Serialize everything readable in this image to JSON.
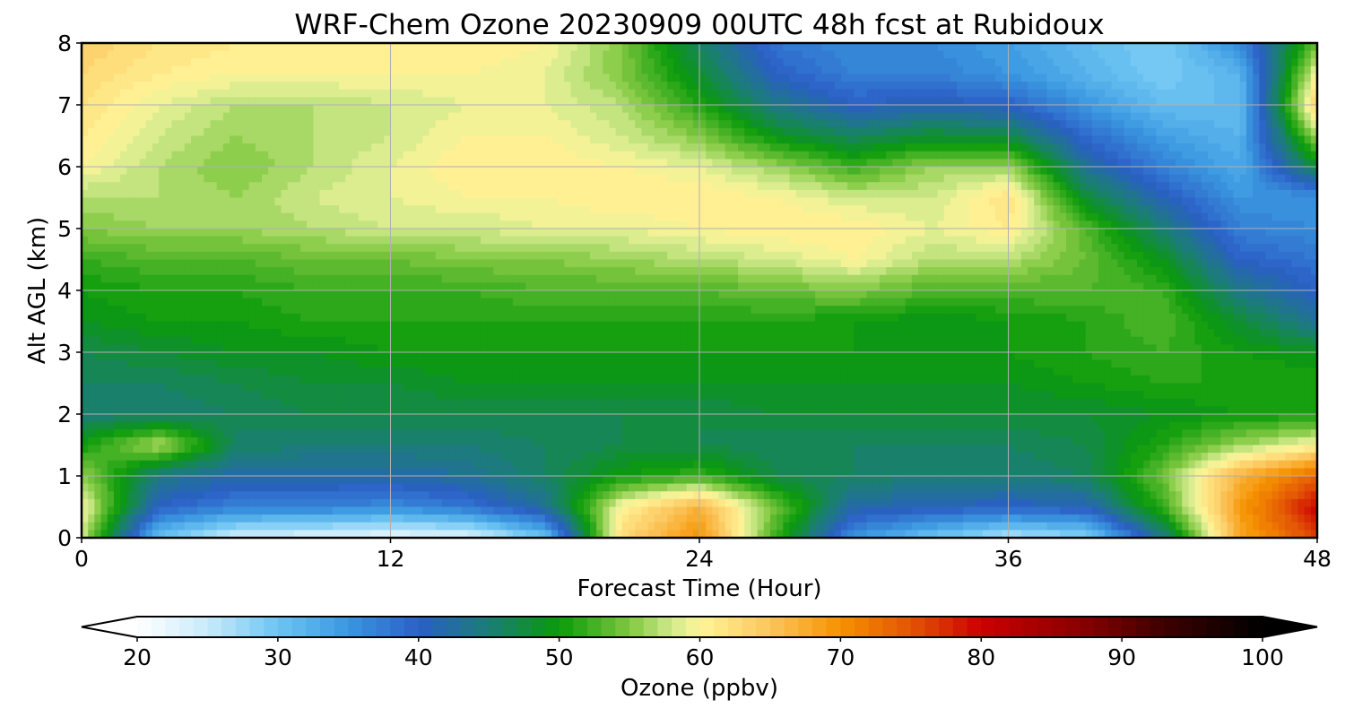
{
  "chart_data": {
    "type": "heatmap",
    "subtype": "filled-contour",
    "title": "WRF-Chem Ozone  20230909 00UTC 48h fcst at Rubidoux",
    "xlabel": "Forecast Time (Hour)",
    "ylabel": "Alt AGL (km)",
    "xlim": [
      0,
      48
    ],
    "ylim": [
      0,
      8
    ],
    "xticks": [
      0,
      12,
      24,
      36,
      48
    ],
    "yticks": [
      0,
      1,
      2,
      3,
      4,
      5,
      6,
      7,
      8
    ],
    "grid": true,
    "x_hours": [
      0,
      3,
      6,
      9,
      12,
      15,
      18,
      21,
      24,
      27,
      30,
      33,
      36,
      39,
      42,
      45,
      48
    ],
    "z_km": [
      0,
      0.5,
      1,
      1.5,
      2,
      2.5,
      3,
      3.5,
      4,
      4.5,
      5,
      5.5,
      6,
      6.5,
      7,
      7.5,
      8
    ],
    "ozone_ppbv": [
      [
        58,
        30,
        24,
        23,
        22,
        23,
        30,
        63,
        70,
        52,
        35,
        30,
        26,
        28,
        44,
        68,
        76
      ],
      [
        60,
        40,
        37,
        37,
        36,
        38,
        43,
        60,
        67,
        54,
        42,
        41,
        40,
        41,
        52,
        69,
        80
      ],
      [
        56,
        44,
        42,
        42,
        42,
        43,
        46,
        50,
        52,
        47,
        46,
        45,
        45,
        46,
        54,
        67,
        74
      ],
      [
        50,
        57,
        46,
        45,
        45,
        45,
        46,
        47,
        47,
        46,
        46,
        46,
        46,
        47,
        51,
        56,
        60
      ],
      [
        45,
        45,
        46,
        47,
        47,
        47,
        47,
        47,
        47,
        48,
        48,
        48,
        48,
        48,
        49,
        50,
        50
      ],
      [
        46,
        46,
        47,
        48,
        48,
        49,
        49,
        49,
        49,
        49,
        49,
        49,
        49,
        50,
        51,
        51,
        51
      ],
      [
        47,
        48,
        49,
        49,
        50,
        50,
        50,
        50,
        50,
        50,
        50,
        50,
        50,
        51,
        52,
        50,
        49
      ],
      [
        49,
        50,
        50,
        51,
        51,
        51,
        51,
        51,
        51,
        51,
        50,
        49,
        50,
        51,
        53,
        48,
        43
      ],
      [
        50,
        51,
        51,
        52,
        52,
        52,
        53,
        53,
        53,
        54,
        55,
        53,
        53,
        53,
        52,
        44,
        40
      ],
      [
        52,
        53,
        53,
        54,
        54,
        55,
        55,
        56,
        57,
        58,
        60,
        57,
        57,
        54,
        49,
        40,
        38
      ],
      [
        55,
        56,
        56,
        57,
        58,
        58,
        59,
        59,
        60,
        61,
        61,
        59,
        61,
        53,
        45,
        37,
        36
      ],
      [
        57,
        57,
        56,
        58,
        59,
        60,
        60,
        61,
        61,
        60,
        58,
        58,
        62,
        48,
        41,
        35,
        35
      ],
      [
        60,
        57,
        55,
        57,
        59,
        61,
        61,
        60,
        59,
        56,
        52,
        56,
        56,
        43,
        37,
        33,
        48
      ],
      [
        61,
        58,
        56,
        57,
        58,
        60,
        60,
        58,
        55,
        49,
        46,
        48,
        47,
        39,
        34,
        32,
        57
      ],
      [
        62,
        59,
        57,
        57,
        58,
        59,
        59,
        57,
        51,
        44,
        40,
        41,
        40,
        35,
        31,
        31,
        64
      ],
      [
        63,
        61,
        60,
        60,
        60,
        60,
        59,
        55,
        48,
        40,
        37,
        37,
        35,
        32,
        29,
        32,
        60
      ],
      [
        64,
        62,
        61,
        61,
        61,
        61,
        60,
        55,
        46,
        38,
        36,
        36,
        34,
        31,
        29,
        36,
        54
      ]
    ],
    "colorbar": {
      "label": "Ozone  (ppbv)",
      "min": 20,
      "max": 100,
      "step": 1,
      "ticks": [
        20,
        30,
        40,
        50,
        60,
        70,
        80,
        90,
        100
      ],
      "extend": "both",
      "stops": [
        {
          "v": 20,
          "c": "#ffffff"
        },
        {
          "v": 25,
          "c": "#c8ebfb"
        },
        {
          "v": 30,
          "c": "#6dc4f3"
        },
        {
          "v": 35,
          "c": "#3a97e0"
        },
        {
          "v": 40,
          "c": "#2b5fc6"
        },
        {
          "v": 45,
          "c": "#1b7d76"
        },
        {
          "v": 50,
          "c": "#0a9a0a"
        },
        {
          "v": 55,
          "c": "#80c840"
        },
        {
          "v": 58,
          "c": "#d0ea8c"
        },
        {
          "v": 60,
          "c": "#fff59a"
        },
        {
          "v": 65,
          "c": "#fcc55c"
        },
        {
          "v": 70,
          "c": "#f59200"
        },
        {
          "v": 75,
          "c": "#e35406"
        },
        {
          "v": 80,
          "c": "#cc0000"
        },
        {
          "v": 87,
          "c": "#8a0000"
        },
        {
          "v": 93,
          "c": "#3e0000"
        },
        {
          "v": 100,
          "c": "#000000"
        }
      ]
    }
  }
}
